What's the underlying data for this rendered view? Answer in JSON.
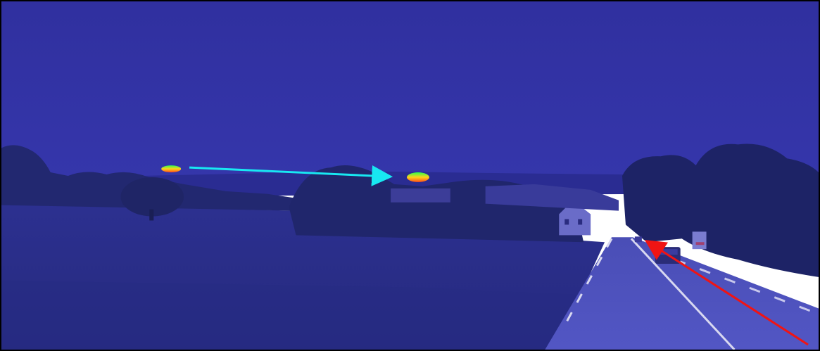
{
  "scene": {
    "description_colors": {
      "tint": "#2e30a0",
      "sky": "#2f31a2",
      "field": "#2b2e88",
      "road": "#5054c0",
      "foliage": "#1f2468"
    },
    "overlays": {
      "heat_blobs": [
        {
          "id": "blob-left",
          "colors": [
            "#ff4a1a",
            "#ffd21a",
            "#2cff4a"
          ]
        },
        {
          "id": "blob-center",
          "colors": [
            "#ff4a1a",
            "#ffd21a",
            "#2cff4a"
          ]
        }
      ],
      "arrows": [
        {
          "id": "cyan-arrow",
          "color": "#18e8f2"
        },
        {
          "id": "red-arrow",
          "color": "#f01414"
        }
      ]
    }
  }
}
